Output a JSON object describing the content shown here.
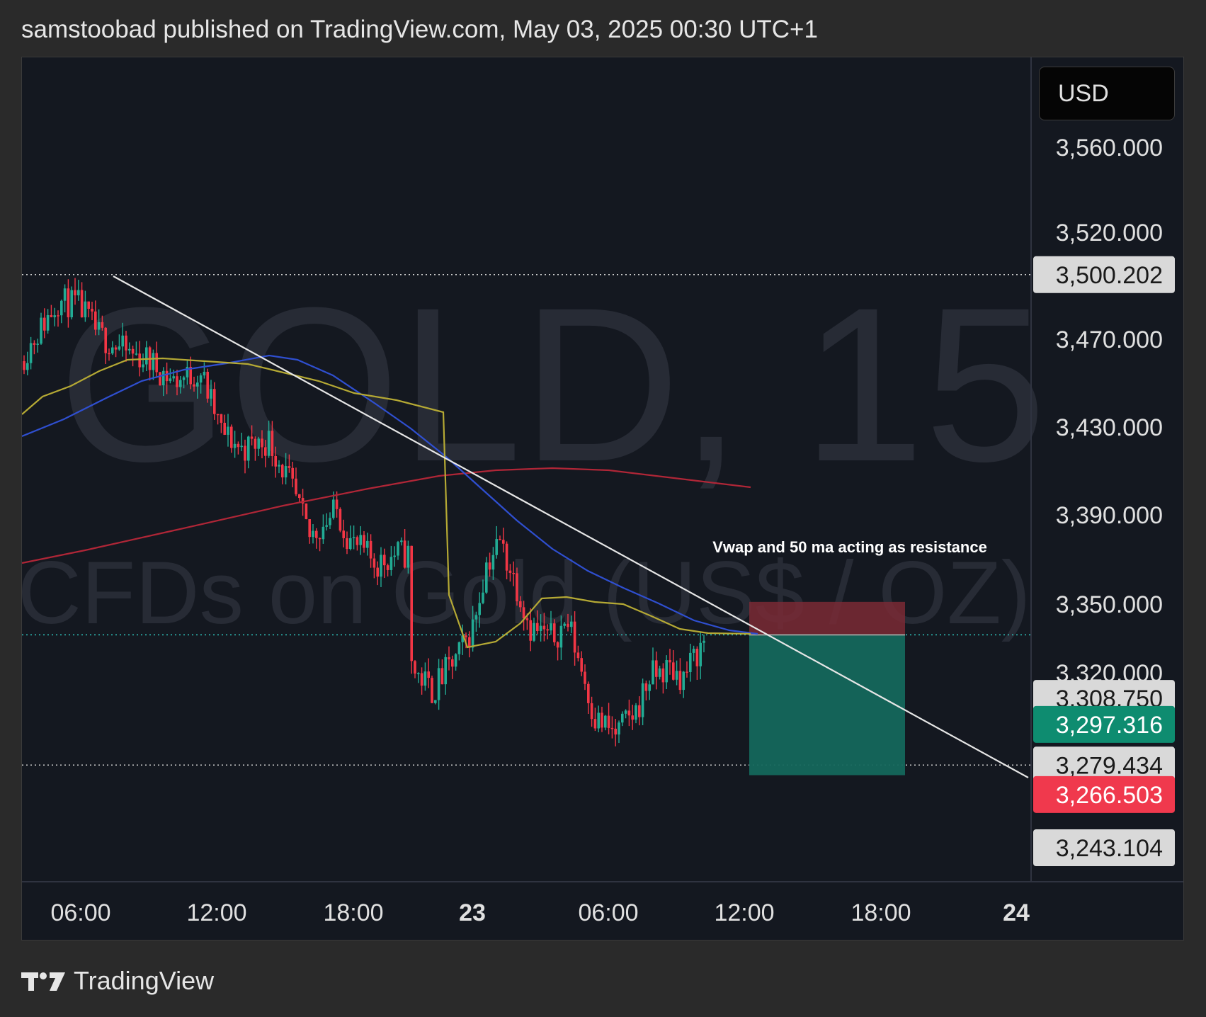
{
  "header": {
    "text": "samstoobad published on TradingView.com, May 03, 2025 00:30 UTC+1"
  },
  "footer": {
    "brand": "TradingView"
  },
  "price_scale": {
    "currency": "USD"
  },
  "chart_data": {
    "type": "candlestick",
    "symbol": "GOLD",
    "interval": "15",
    "watermark": {
      "line1": "GOLD, 15",
      "line2": "CFDs on Gold (US$ / OZ)"
    },
    "y_axis": {
      "ticks": [
        "3,560.000",
        "3,520.000",
        "3,470.000",
        "3,430.000",
        "3,390.000",
        "3,350.000",
        "3,320.000"
      ],
      "tick_values": [
        3560,
        3520,
        3470,
        3430,
        3390,
        3350,
        3320
      ]
    },
    "x_axis": {
      "ticks": [
        "06:00",
        "12:00",
        "18:00",
        "23",
        "06:00",
        "12:00",
        "18:00",
        "24"
      ]
    },
    "price_labels": [
      {
        "text": "3,500.202",
        "value": 3500.202,
        "color": "#d9d9d9",
        "text_color": "#1a1a1a"
      },
      {
        "text": "3,308.750",
        "value": 3308.75,
        "color": "#d9d9d9",
        "text_color": "#1a1a1a"
      },
      {
        "text": "3,297.316",
        "value": 3297.316,
        "color": "#0e8c70",
        "text_color": "#ffffff"
      },
      {
        "text": "3,279.434",
        "value": 3279.434,
        "color": "#d9d9d9",
        "text_color": "#1a1a1a"
      },
      {
        "text": "3,266.503",
        "value": 3266.503,
        "color": "#f0394d",
        "text_color": "#ffffff"
      },
      {
        "text": "3,243.104",
        "value": 3243.104,
        "color": "#d9d9d9",
        "text_color": "#1a1a1a"
      }
    ],
    "annotation": "Vwap and 50 ma acting as resistance",
    "trade_box": {
      "stop": 3351,
      "entry": 3336.6,
      "target": 3275
    },
    "colors": {
      "up": "#22ab94",
      "down": "#f23645",
      "vwap": "#b5a934",
      "ma50": "#2f4fd0",
      "ma200": "#b02637",
      "trendline": "#e6e6e6"
    }
  }
}
